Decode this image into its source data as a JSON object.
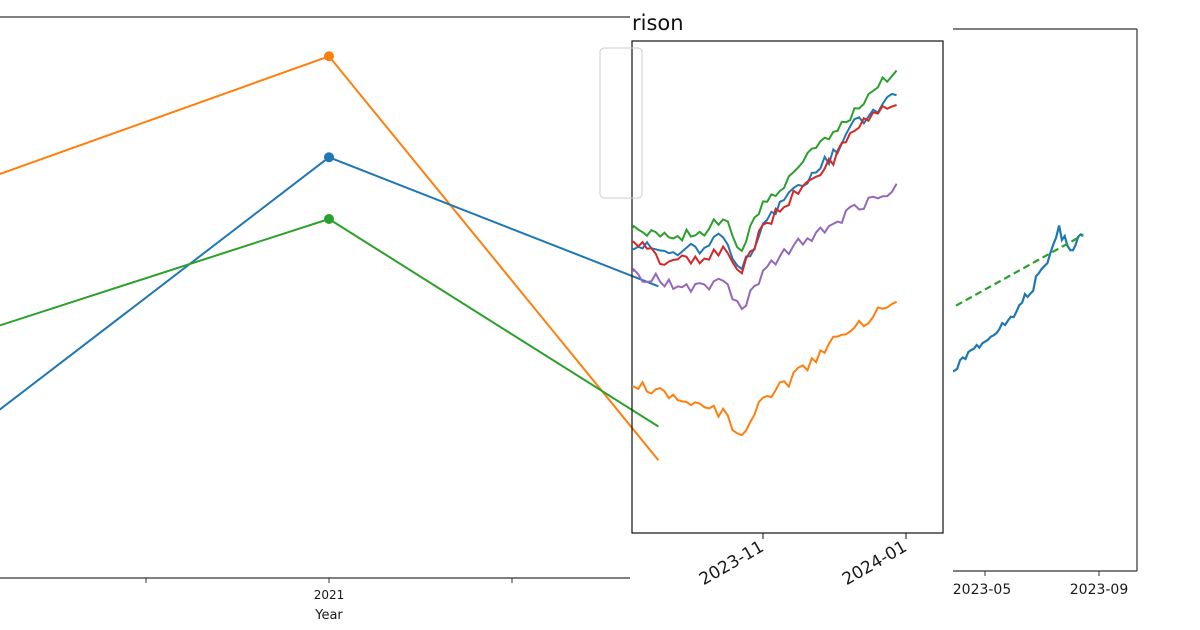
{
  "chart_data": [
    {
      "type": "line",
      "panel": "left",
      "xlabel": "Year",
      "x_ticks": [
        "2021"
      ],
      "series": [
        {
          "color": "#ff7f0e",
          "points": [
            [
              2020.1,
              0.72
            ],
            [
              2021,
              0.93
            ],
            [
              2021.9,
              0.21
            ]
          ]
        },
        {
          "color": "#1f77b4",
          "points": [
            [
              2020.1,
              0.3
            ],
            [
              2021,
              0.75
            ],
            [
              2021.9,
              0.52
            ]
          ]
        },
        {
          "color": "#2ca02c",
          "points": [
            [
              2020.1,
              0.45
            ],
            [
              2021,
              0.64
            ],
            [
              2021.9,
              0.27
            ]
          ]
        }
      ],
      "markers_at": [
        2021
      ],
      "grid": false
    },
    {
      "type": "line",
      "panel": "middle",
      "title_fragment": "rison",
      "x_ticks": [
        "2023-11",
        "2024-01"
      ],
      "series": [
        {
          "color": "#2ca02c",
          "x": [
            "2023-09-05",
            "2023-09-20",
            "2023-10-05",
            "2023-10-15",
            "2023-10-23",
            "2023-11-01",
            "2023-11-10",
            "2023-11-20",
            "2023-12-01",
            "2023-12-10",
            "2023-12-20",
            "2023-12-28"
          ],
          "y": [
            0.62,
            0.6,
            0.61,
            0.64,
            0.57,
            0.68,
            0.7,
            0.77,
            0.81,
            0.86,
            0.91,
            0.94
          ]
        },
        {
          "color": "#1f77b4",
          "x": [
            "2023-09-05",
            "2023-09-20",
            "2023-10-05",
            "2023-10-15",
            "2023-10-23",
            "2023-11-01",
            "2023-11-10",
            "2023-11-20",
            "2023-12-01",
            "2023-12-10",
            "2023-12-20",
            "2023-12-28"
          ],
          "y": [
            0.59,
            0.57,
            0.58,
            0.6,
            0.53,
            0.63,
            0.67,
            0.72,
            0.77,
            0.83,
            0.86,
            0.89
          ]
        },
        {
          "color": "#d62728",
          "x": [
            "2023-09-05",
            "2023-09-20",
            "2023-10-05",
            "2023-10-15",
            "2023-10-23",
            "2023-11-01",
            "2023-11-10",
            "2023-11-20",
            "2023-12-01",
            "2023-12-10",
            "2023-12-20",
            "2023-12-28"
          ],
          "y": [
            0.6,
            0.55,
            0.56,
            0.57,
            0.54,
            0.62,
            0.67,
            0.71,
            0.76,
            0.82,
            0.86,
            0.87
          ]
        },
        {
          "color": "#9467bd",
          "x": [
            "2023-09-05",
            "2023-09-20",
            "2023-10-05",
            "2023-10-15",
            "2023-10-23",
            "2023-11-01",
            "2023-11-10",
            "2023-11-20",
            "2023-12-01",
            "2023-12-10",
            "2023-12-20",
            "2023-12-28"
          ],
          "y": [
            0.53,
            0.51,
            0.5,
            0.51,
            0.45,
            0.53,
            0.57,
            0.6,
            0.63,
            0.66,
            0.68,
            0.71
          ]
        },
        {
          "color": "#ff7f0e",
          "x": [
            "2023-09-05",
            "2023-09-20",
            "2023-10-05",
            "2023-10-15",
            "2023-10-23",
            "2023-11-01",
            "2023-11-10",
            "2023-11-20",
            "2023-12-01",
            "2023-12-10",
            "2023-12-20",
            "2023-12-28"
          ],
          "y": [
            0.31,
            0.28,
            0.26,
            0.24,
            0.19,
            0.27,
            0.3,
            0.34,
            0.39,
            0.42,
            0.45,
            0.47
          ]
        }
      ],
      "grid": false
    },
    {
      "type": "line",
      "panel": "right",
      "x_ticks": [
        "2023-05",
        "2023-09"
      ],
      "series": [
        {
          "color": "#1f77b4",
          "style": "solid",
          "x": [
            "2023-03-10",
            "2023-04-01",
            "2023-05-01",
            "2023-06-01",
            "2023-07-01",
            "2023-07-20",
            "2023-08-01",
            "2023-08-15"
          ],
          "y": [
            0.33,
            0.38,
            0.42,
            0.47,
            0.55,
            0.63,
            0.59,
            0.62
          ]
        },
        {
          "color": "#2ca02c",
          "style": "dashed",
          "x": [
            "2023-03-10",
            "2023-08-15"
          ],
          "y": [
            0.47,
            0.62
          ]
        }
      ],
      "grid": false
    }
  ]
}
